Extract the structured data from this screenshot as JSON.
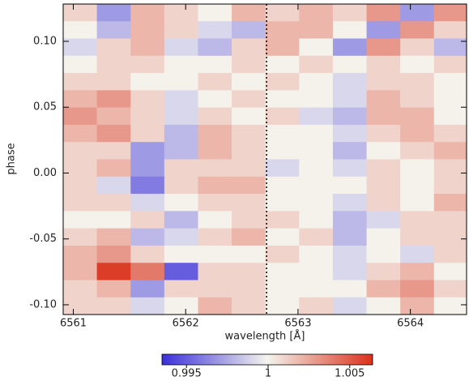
{
  "chart_data": {
    "type": "heatmap",
    "xlabel": "wavelength [Å]",
    "ylabel": "phase",
    "xlim": [
      6560.91,
      6564.5
    ],
    "ylim": [
      -0.1074,
      0.1283
    ],
    "xticks": [
      6561,
      6562,
      6563,
      6564
    ],
    "yticks": [
      {
        "value": -0.1,
        "label": "-0.10"
      },
      {
        "value": -0.05,
        "label": "-0.05"
      },
      {
        "value": 0,
        "label": "0.00"
      },
      0.05,
      {
        "value": 0.1,
        "label": "0.10"
      }
    ],
    "reference_line_x": 6562.72,
    "x": [
      6561.06,
      6561.36,
      6561.66,
      6561.96,
      6562.26,
      6562.56,
      6562.86,
      6563.16,
      6563.46,
      6563.76,
      6564.06,
      6564.36
    ],
    "y": [
      0.1218,
      0.1087,
      0.0956,
      0.0825,
      0.0694,
      0.0563,
      0.0432,
      0.0301,
      0.017,
      0.0039,
      -0.0092,
      -0.0223,
      -0.0354,
      -0.0485,
      -0.0616,
      -0.0747,
      -0.0878,
      -0.1009
    ],
    "z": [
      [
        1.001,
        0.997,
        1.002,
        1.001,
        1.0,
        1.002,
        1.001,
        1.002,
        1.001,
        1.003,
        0.997,
        1.003
      ],
      [
        1.0,
        0.998,
        1.002,
        1.001,
        0.999,
        0.998,
        1.002,
        1.002,
        1.0,
        0.997,
        1.003,
        1.001
      ],
      [
        0.999,
        1.001,
        1.002,
        0.999,
        0.998,
        1.001,
        1.002,
        1.0,
        0.997,
        1.003,
        1.001,
        0.998
      ],
      [
        1.0,
        1.001,
        1.001,
        1.0,
        1.0,
        1.001,
        1.0,
        1.001,
        1.0,
        1.001,
        1.0,
        1.001
      ],
      [
        1.001,
        1.001,
        1.0,
        1.0,
        1.001,
        1.0,
        1.001,
        1.0,
        0.999,
        1.001,
        1.001,
        1.0
      ],
      [
        1.002,
        1.003,
        1.001,
        0.999,
        1.0,
        1.001,
        1.0,
        1.0,
        0.999,
        1.002,
        1.001,
        1.0
      ],
      [
        1.003,
        1.002,
        1.001,
        0.999,
        1.001,
        1.0,
        1.001,
        0.999,
        0.998,
        1.002,
        1.002,
        1.0
      ],
      [
        1.002,
        1.003,
        1.001,
        0.998,
        1.002,
        1.001,
        1.0,
        1.0,
        0.999,
        1.001,
        1.002,
        1.001
      ],
      [
        1.001,
        1.001,
        0.997,
        0.998,
        1.002,
        1.001,
        1.0,
        1.0,
        0.998,
        1.0,
        1.001,
        1.002
      ],
      [
        1.001,
        1.002,
        0.997,
        1.001,
        1.001,
        1.001,
        0.999,
        1.0,
        0.999,
        1.001,
        1.0,
        1.001
      ],
      [
        1.001,
        0.999,
        0.996,
        1.001,
        1.002,
        1.002,
        1.0,
        1.0,
        1.0,
        1.001,
        1.0,
        1.001
      ],
      [
        1.001,
        1.001,
        0.999,
        1.0,
        1.001,
        1.001,
        1.0,
        1.0,
        0.999,
        1.001,
        1.0,
        1.002
      ],
      [
        1.0,
        1.0,
        1.001,
        0.998,
        1.0,
        1.001,
        1.001,
        1.0,
        0.998,
        0.999,
        1.001,
        1.001
      ],
      [
        1.001,
        1.002,
        0.998,
        0.999,
        1.001,
        1.002,
        1.0,
        1.001,
        0.998,
        1.0,
        1.001,
        1.001
      ],
      [
        1.002,
        1.003,
        1.001,
        1.0,
        1.0,
        1.0,
        1.001,
        1.0,
        0.999,
        1.0,
        0.999,
        1.001
      ],
      [
        1.002,
        1.006,
        1.004,
        0.995,
        1.001,
        1.001,
        1.0,
        1.0,
        0.999,
        1.001,
        1.002,
        1.0
      ],
      [
        1.001,
        1.002,
        0.997,
        1.001,
        1.001,
        1.001,
        1.0,
        1.0,
        1.0,
        1.002,
        1.003,
        1.001
      ],
      [
        1.001,
        1.001,
        0.999,
        1.0,
        1.002,
        1.001,
        1.0,
        1.001,
        0.999,
        1.0,
        1.002,
        1.0
      ]
    ],
    "colormap": [
      "#3a2fd8",
      "#f5f4ee",
      "#d9311a"
    ],
    "clim": [
      0.9935,
      1.0064
    ],
    "cticks": [
      0.995,
      1,
      1.005
    ]
  }
}
